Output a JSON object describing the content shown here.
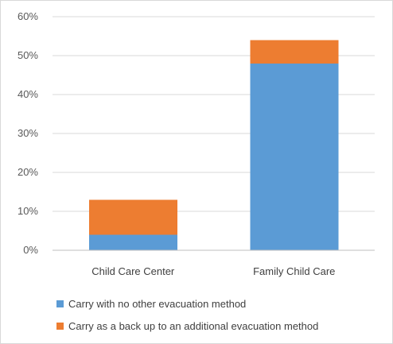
{
  "chart_data": {
    "type": "bar",
    "stacked": true,
    "categories": [
      "Child Care Center",
      "Family Child Care"
    ],
    "series": [
      {
        "name": "Carry with no other evacuation method",
        "values": [
          4,
          48
        ],
        "color": "#5b9bd5"
      },
      {
        "name": "Carry as a back up to an additional evacuation method",
        "values": [
          9,
          6
        ],
        "color": "#ed7d31"
      }
    ],
    "ylim": [
      0,
      60
    ],
    "yticks": [
      "0%",
      "10%",
      "20%",
      "30%",
      "40%",
      "50%",
      "60%"
    ],
    "grid": true,
    "legend": "bottom-left"
  }
}
